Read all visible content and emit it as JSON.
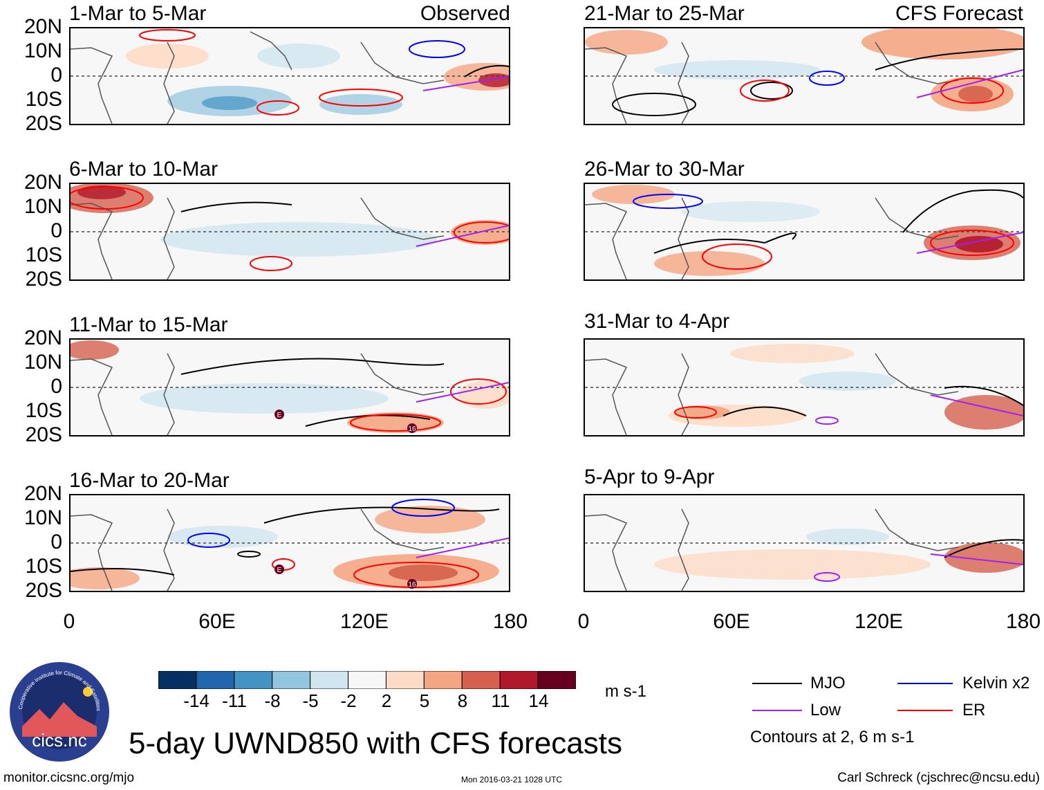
{
  "panels": [
    {
      "title": "1-Mar to 5-Mar",
      "label": "Observed"
    },
    {
      "title": "6-Mar to 10-Mar",
      "label": ""
    },
    {
      "title": "11-Mar to 15-Mar",
      "label": ""
    },
    {
      "title": "16-Mar to 20-Mar",
      "label": ""
    },
    {
      "title": "21-Mar to 25-Mar",
      "label": "CFS Forecast"
    },
    {
      "title": "26-Mar to 30-Mar",
      "label": ""
    },
    {
      "title": "31-Mar to 4-Apr",
      "label": ""
    },
    {
      "title": "5-Apr to 9-Apr",
      "label": ""
    }
  ],
  "lat_ticks": [
    "20N",
    "10N",
    "0",
    "10S",
    "20S"
  ],
  "lon_ticks": [
    "0",
    "60E",
    "120E",
    "180"
  ],
  "storm_markers": [
    "E",
    "16"
  ],
  "colorbar": {
    "labels": [
      "-14",
      "-11",
      "-8",
      "-5",
      "-2",
      "2",
      "5",
      "8",
      "11",
      "14"
    ],
    "colors": [
      "#053061",
      "#2166ac",
      "#4393c3",
      "#92c5de",
      "#d1e5f0",
      "#f7f7f7",
      "#fddbc7",
      "#f4a582",
      "#d6604d",
      "#b2182b",
      "#67001f"
    ],
    "units": "m s-1"
  },
  "legend": {
    "items": [
      {
        "label": "MJO",
        "color": "#000000"
      },
      {
        "label": "Kelvin x2",
        "color": "#0000ff"
      },
      {
        "label": "Low",
        "color": "#a020f0"
      },
      {
        "label": "ER",
        "color": "#ff0000"
      }
    ],
    "note": "Contours at 2, 6 m s-1"
  },
  "logo": {
    "name": "cics.nc",
    "ring_text": "Cooperative Institute for Climate and Satellites"
  },
  "main_title": "5-day UWND850 with CFS forecasts",
  "footer": {
    "left": "monitor.cicsnc.org/mjo",
    "center": "Mon 2016-03-21 1028 UTC",
    "right": "Carl Schreck (cjschrec@ncsu.edu)"
  }
}
